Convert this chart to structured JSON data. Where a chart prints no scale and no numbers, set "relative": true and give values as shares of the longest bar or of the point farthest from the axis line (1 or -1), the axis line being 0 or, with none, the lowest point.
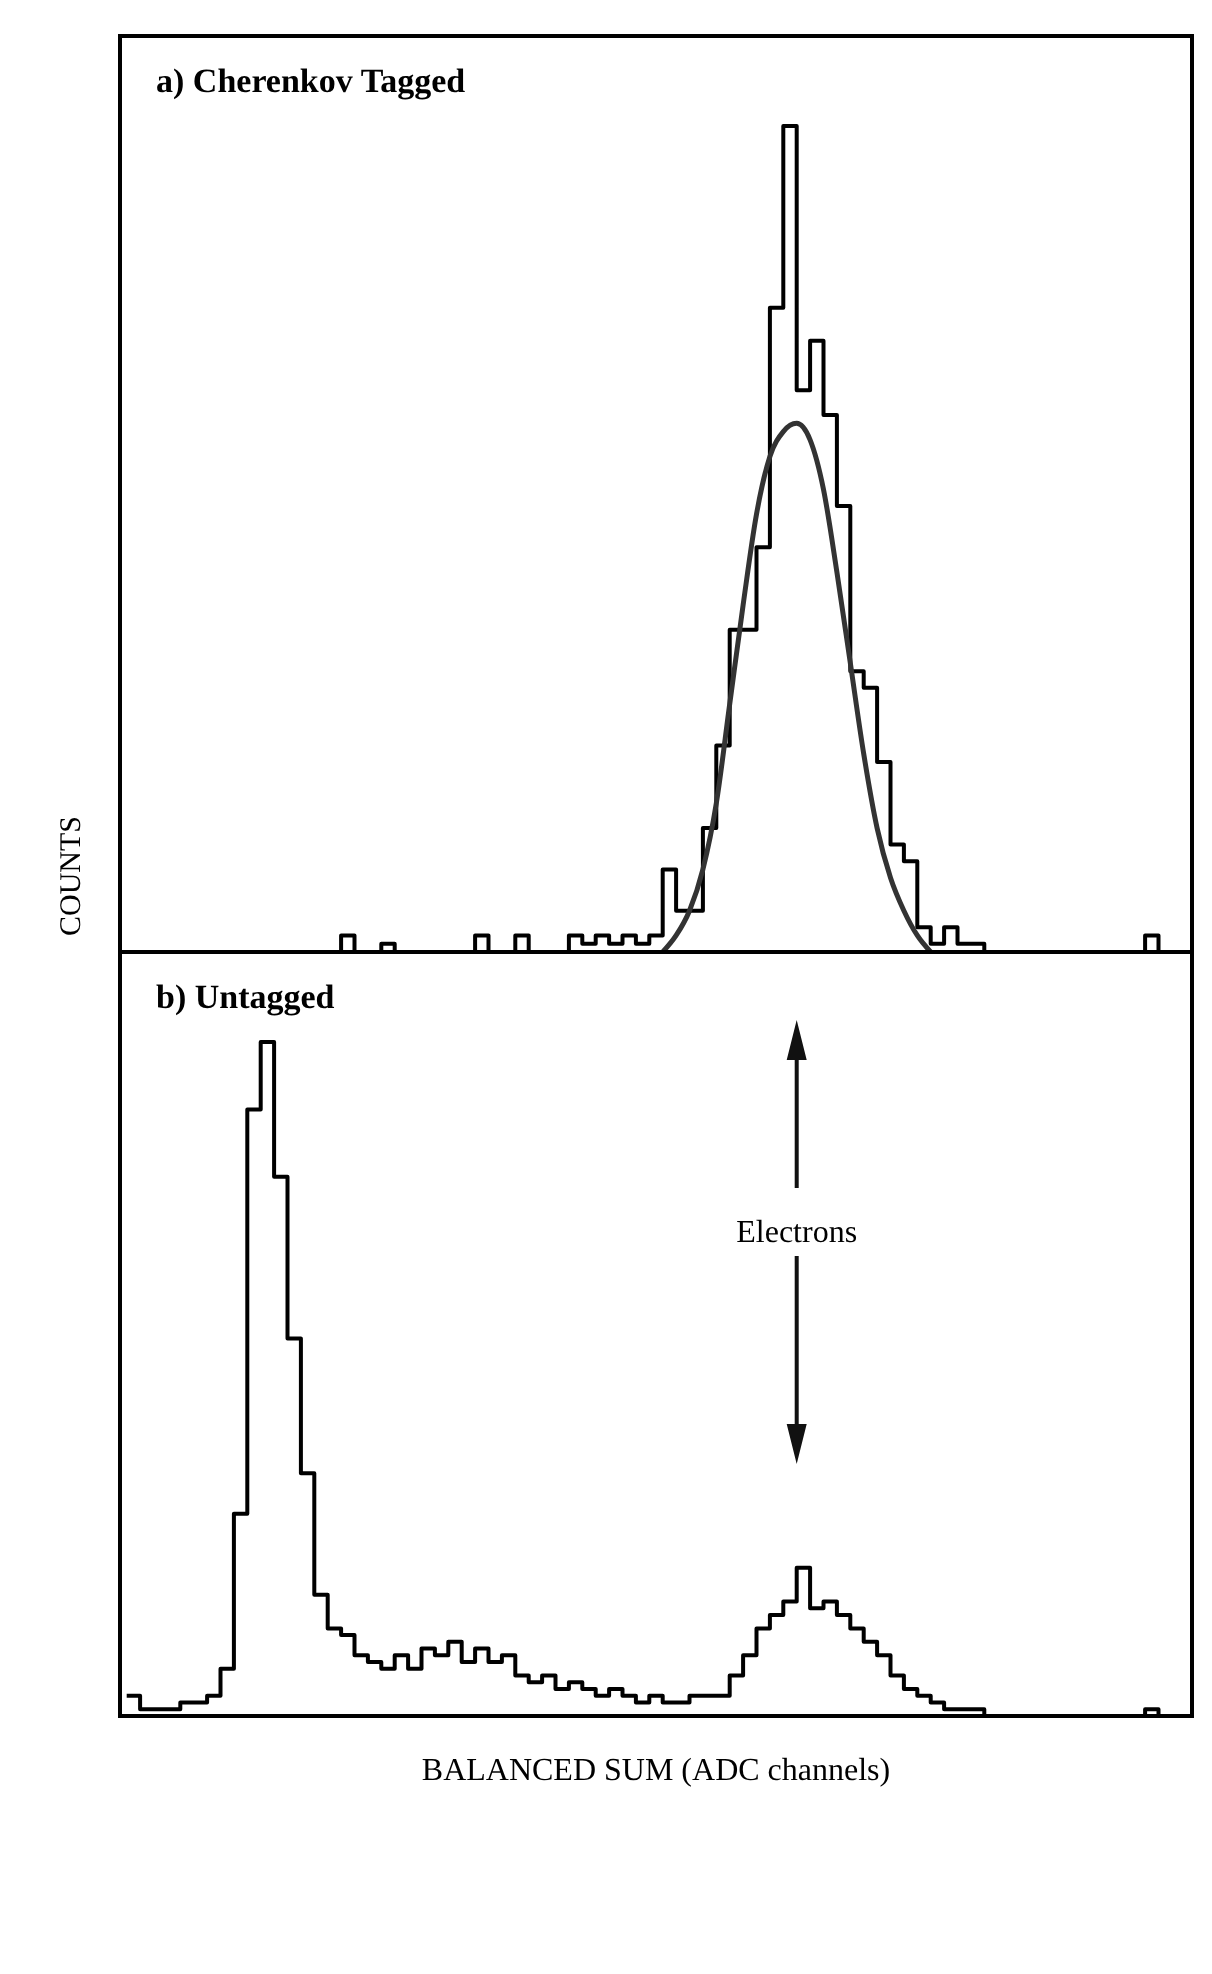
{
  "chart_data": [
    {
      "type": "step",
      "title": "a)  Cherenkov Tagged",
      "ylabel": "COUNTS",
      "relative": true,
      "categories": [
        null,
        null,
        null,
        null,
        null,
        null,
        null,
        null,
        null,
        null,
        null,
        null,
        null,
        null,
        null,
        null,
        null,
        null,
        null,
        null,
        null,
        null,
        null,
        null,
        null,
        null,
        null,
        null,
        null,
        null,
        null,
        null,
        null,
        null,
        null,
        null,
        null,
        null,
        null,
        null,
        null,
        null,
        null,
        null,
        null,
        null,
        null,
        null,
        null,
        null,
        null,
        null,
        null,
        null,
        null,
        null,
        null,
        null,
        null,
        null,
        null,
        null,
        null,
        null,
        null,
        null,
        null,
        null,
        null,
        null,
        null,
        null,
        null,
        null,
        null,
        null,
        null,
        null,
        null,
        null
      ],
      "series": [
        {
          "color": "#000000",
          "values": [
            0,
            0,
            0,
            0,
            0,
            0,
            0,
            0,
            0,
            0,
            0,
            0,
            0,
            0,
            0,
            0,
            0.02,
            0,
            0,
            0.01,
            0,
            0,
            0,
            0,
            0,
            0,
            0.02,
            0,
            0,
            0.02,
            0,
            0,
            0,
            0.02,
            0.01,
            0.02,
            0.01,
            0.02,
            0.01,
            0.02,
            0.1,
            0.05,
            0.05,
            0.15,
            0.25,
            0.39,
            0.39,
            0.49,
            0.78,
            1,
            0.68,
            0.74,
            0.65,
            0.54,
            0.34,
            0.32,
            0.23,
            0.13,
            0.11,
            0.03,
            0.01,
            0.03,
            0.01,
            0.01,
            0,
            0,
            0,
            0,
            0,
            0,
            0,
            0,
            0,
            0,
            0,
            0,
            0.02,
            0,
            0,
            0
          ]
        },
        {
          "type": "line",
          "color": "#333333",
          "values": [
            null,
            null,
            null,
            null,
            null,
            null,
            null,
            null,
            null,
            null,
            null,
            null,
            null,
            null,
            null,
            null,
            null,
            null,
            null,
            null,
            null,
            null,
            null,
            null,
            null,
            null,
            null,
            null,
            null,
            null,
            null,
            null,
            null,
            null,
            null,
            null,
            null,
            null,
            null,
            null,
            0,
            0.02,
            0.05,
            0.1,
            0.18,
            0.3,
            0.42,
            0.53,
            0.6,
            0.63,
            0.64,
            0.62,
            0.56,
            0.46,
            0.35,
            0.24,
            0.15,
            0.09,
            0.05,
            0.02,
            0,
            null,
            null,
            null,
            null,
            null,
            null,
            null,
            null,
            null,
            null,
            null,
            null,
            null,
            null,
            null,
            null,
            null,
            null,
            null
          ]
        }
      ]
    },
    {
      "type": "step",
      "title": "b)  Untagged",
      "xlabel": "BALANCED SUM (ADC channels)",
      "relative": true,
      "annotations": [
        "Electrons"
      ],
      "categories": [
        null,
        null,
        null,
        null,
        null,
        null,
        null,
        null,
        null,
        null,
        null,
        null,
        null,
        null,
        null,
        null,
        null,
        null,
        null,
        null,
        null,
        null,
        null,
        null,
        null,
        null,
        null,
        null,
        null,
        null,
        null,
        null,
        null,
        null,
        null,
        null,
        null,
        null,
        null,
        null,
        null,
        null,
        null,
        null,
        null,
        null,
        null,
        null,
        null,
        null,
        null,
        null,
        null,
        null,
        null,
        null,
        null,
        null,
        null,
        null,
        null,
        null,
        null,
        null,
        null,
        null,
        null,
        null,
        null,
        null,
        null,
        null,
        null,
        null,
        null,
        null,
        null,
        null,
        null,
        null
      ],
      "color": "#000000",
      "values": [
        0.03,
        0.01,
        0.01,
        0.01,
        0.02,
        0.02,
        0.03,
        0.07,
        0.3,
        0.9,
        1,
        0.8,
        0.56,
        0.36,
        0.18,
        0.13,
        0.12,
        0.09,
        0.08,
        0.07,
        0.09,
        0.07,
        0.1,
        0.09,
        0.11,
        0.08,
        0.1,
        0.08,
        0.09,
        0.06,
        0.05,
        0.06,
        0.04,
        0.05,
        0.04,
        0.03,
        0.04,
        0.03,
        0.02,
        0.03,
        0.02,
        0.02,
        0.03,
        0.03,
        0.03,
        0.06,
        0.09,
        0.13,
        0.15,
        0.17,
        0.22,
        0.16,
        0.17,
        0.15,
        0.13,
        0.11,
        0.09,
        0.06,
        0.04,
        0.03,
        0.02,
        0.01,
        0.01,
        0.01,
        0,
        0,
        0,
        0,
        0,
        0,
        0,
        0,
        0,
        0,
        0,
        0,
        0.01,
        0,
        0,
        0
      ]
    }
  ]
}
